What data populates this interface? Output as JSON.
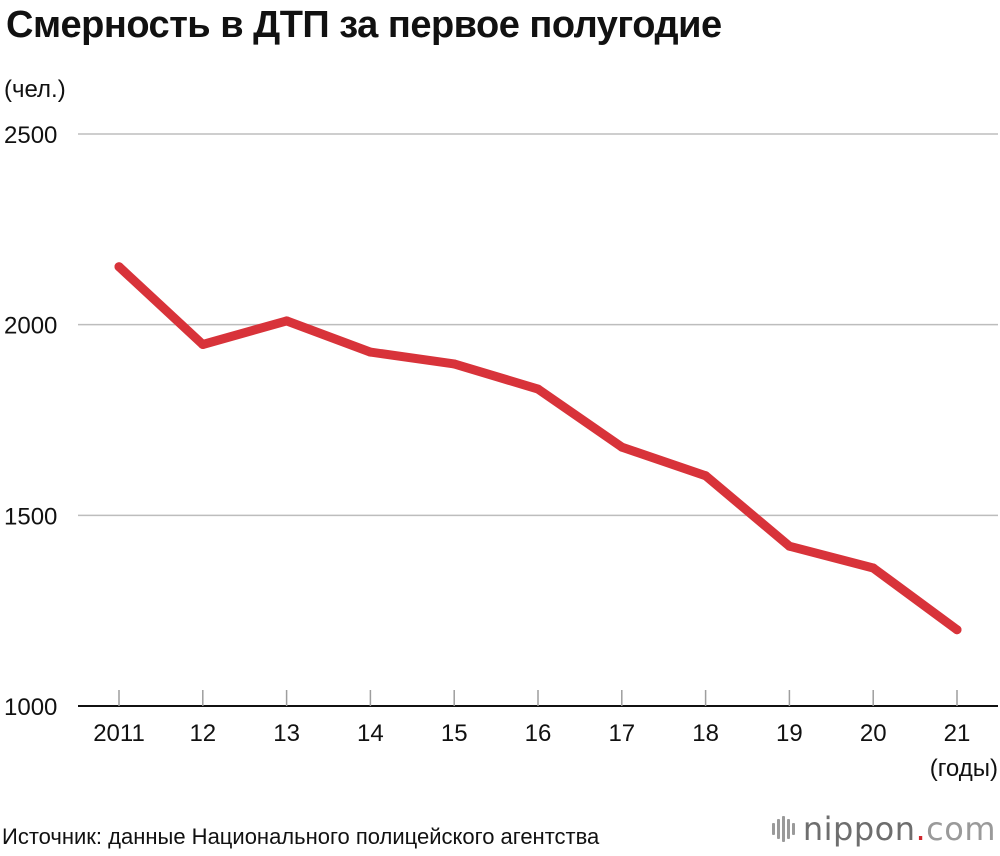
{
  "chart_data": {
    "type": "line",
    "title": "Смерность в ДТП за первое полугодие",
    "ylabel": "(чел.)",
    "xlabel": "(годы)",
    "categories": [
      "2011",
      "12",
      "13",
      "14",
      "15",
      "16",
      "17",
      "18",
      "19",
      "20",
      "21"
    ],
    "series": [
      {
        "values": [
          2152,
          1948,
          2010,
          1928,
          1897,
          1831,
          1679,
          1604,
          1419,
          1362,
          1200
        ],
        "color": "#d8333a"
      }
    ],
    "ylim": [
      1000,
      2500
    ],
    "yticks": [
      "1000",
      "1500",
      "2000",
      "2500"
    ],
    "grid": true,
    "legend": "none"
  },
  "source": "Источник: данные Национального полицейского агентства",
  "brand": {
    "name": "nippon",
    "dot": ".",
    "suffix": "com",
    "icon": "nippon-logo-bars-icon"
  }
}
